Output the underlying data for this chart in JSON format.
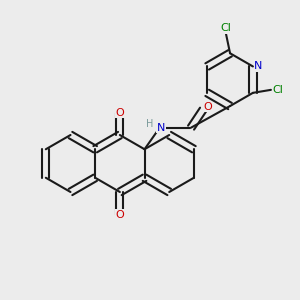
{
  "bg_color": "#ececec",
  "bond_color": "#1a1a1a",
  "bond_width": 1.5,
  "atom_colors": {
    "C": "#1a1a1a",
    "N": "#0000cc",
    "O": "#cc0000",
    "Cl": "#008000",
    "H": "#7a9a9a"
  },
  "font_size": 7,
  "figsize": [
    3.0,
    3.0
  ],
  "dpi": 100
}
